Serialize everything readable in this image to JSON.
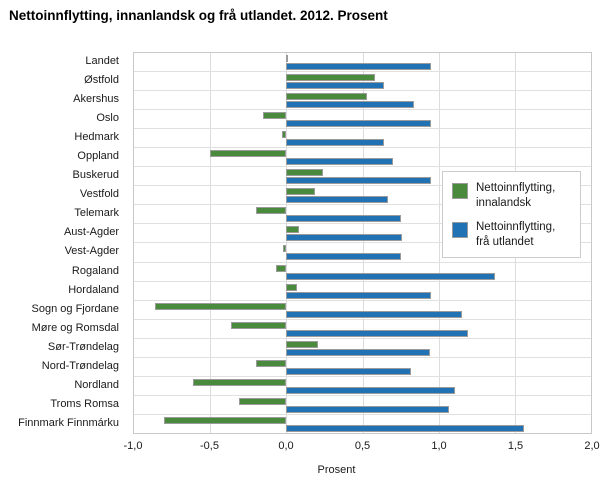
{
  "title": "Nettoinnflytting, innanlandsk og frå utlandet. 2012. Prosent",
  "chart_data": {
    "type": "bar",
    "orientation": "horizontal",
    "title": "Nettoinnflytting, innanlandsk og frå utlandet. 2012. Prosent",
    "xlabel": "Prosent",
    "xlim": [
      -1.0,
      2.0
    ],
    "x_ticks": [
      -1.0,
      -0.5,
      0.0,
      0.5,
      1.0,
      1.5,
      2.0
    ],
    "x_tick_labels": [
      "-1,0",
      "-0,5",
      "0,0",
      "0,5",
      "1,0",
      "1,5",
      "2,0"
    ],
    "grid": true,
    "legend_position": "right-inside",
    "categories": [
      "Landet",
      "Østfold",
      "Akershus",
      "Oslo",
      "Hedmark",
      "Oppland",
      "Buskerud",
      "Vestfold",
      "Telemark",
      "Aust-Agder",
      "Vest-Agder",
      "Rogaland",
      "Hordaland",
      "Sogn og Fjordane",
      "Møre og Romsdal",
      "Sør-Trøndelag",
      "Nord-Trøndelag",
      "Nordland",
      "Troms Romsa",
      "Finnmark Finnmárku"
    ],
    "series": [
      {
        "name": "Nettoinnflytting, innalandsk",
        "legend_lines": [
          "Nettoinnflytting,",
          "innalandsk"
        ],
        "color": "#4a8a3c",
        "values": [
          0.0,
          0.58,
          0.53,
          -0.15,
          -0.03,
          -0.5,
          0.24,
          0.19,
          -0.2,
          0.08,
          -0.02,
          -0.07,
          0.07,
          -0.86,
          -0.36,
          0.21,
          -0.2,
          -0.61,
          -0.31,
          -0.8
        ]
      },
      {
        "name": "Nettoinnflytting, frå utlandet",
        "legend_lines": [
          "Nettoinnflytting,",
          "frå utlandet"
        ],
        "color": "#2171b5",
        "values": [
          0.95,
          0.64,
          0.84,
          0.95,
          0.64,
          0.7,
          0.95,
          0.67,
          0.75,
          0.76,
          0.75,
          1.37,
          0.95,
          1.15,
          1.19,
          0.94,
          0.82,
          1.11,
          1.07,
          1.56
        ]
      }
    ],
    "colors": {
      "grid": "#dcdcdc",
      "bar_border": "#9b9b9b",
      "plot_border": "#c9c9c9"
    }
  }
}
